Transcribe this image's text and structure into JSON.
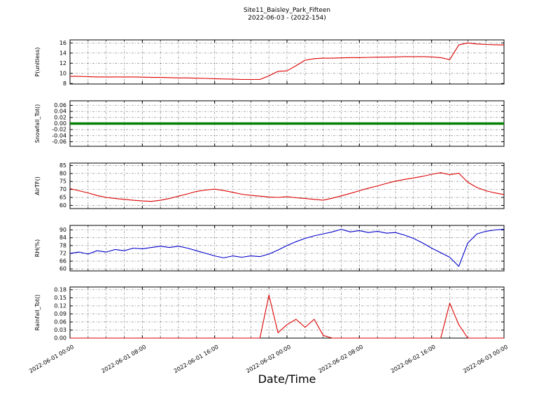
{
  "figure": {
    "title": "Site11_Baisley_Park_Fifteen",
    "subtitle": "2022-06-03 - (2022-154)",
    "xlabel": "Date/Time"
  },
  "chart_data": {
    "type": "line",
    "title": "Site11_Baisley_Park_Fifteen",
    "subtitle": "2022-06-03 - (2022-154)",
    "xlabel": "Date/Time",
    "x_unit": "hours since 2022-06-01 00:00",
    "x_range_hours": [
      0,
      48
    ],
    "xticks": [
      0,
      8,
      16,
      24,
      32,
      40,
      48
    ],
    "xtick_labels": [
      "2022-06-01 00:00",
      "2022-06-01 08:00",
      "2022-06-01 16:00",
      "2022-06-02 00:00",
      "2022-06-02 08:00",
      "2022-06-02 16:00",
      "2022-06-03 00:00"
    ],
    "minor_x_step": 2,
    "grid": true,
    "legend": "none",
    "subplots": [
      {
        "name": "subplot-p-unitless",
        "ylabel": "P(unitless)",
        "color": "#dd0000",
        "line_width": 1.1,
        "ylim": [
          7.9,
          16.6
        ],
        "yticks": [
          8,
          10,
          12,
          14,
          16
        ],
        "ytick_labels": [
          "8",
          "10",
          "12",
          "14",
          "16"
        ],
        "values": [
          9.4,
          9.4,
          9.35,
          9.3,
          9.3,
          9.3,
          9.3,
          9.3,
          9.25,
          9.2,
          9.2,
          9.15,
          9.1,
          9.1,
          9.05,
          9.0,
          8.95,
          8.9,
          8.85,
          8.8,
          8.8,
          8.8,
          9.5,
          10.4,
          10.5,
          11.5,
          12.6,
          12.9,
          13.0,
          13.0,
          13.05,
          13.1,
          13.1,
          13.15,
          13.2,
          13.2,
          13.25,
          13.3,
          13.3,
          13.3,
          13.25,
          13.1,
          12.7,
          15.6,
          16.0,
          15.8,
          15.7,
          15.65,
          15.6
        ]
      },
      {
        "name": "subplot-snowfall-tot",
        "ylabel": "Snowfall_Tot()",
        "color": "#008000",
        "line_width": 3.5,
        "ylim": [
          -0.075,
          0.075
        ],
        "yticks": [
          -0.06,
          -0.04,
          -0.02,
          0.0,
          0.02,
          0.04,
          0.06
        ],
        "ytick_labels": [
          "-0.06",
          "-0.04",
          "-0.02",
          "0.00",
          "0.02",
          "0.04",
          "0.06"
        ],
        "values": [
          0,
          0
        ]
      },
      {
        "name": "subplot-airtf",
        "ylabel": "AirTF()",
        "color": "#dd0000",
        "line_width": 1.1,
        "ylim": [
          58,
          86.5
        ],
        "yticks": [
          60,
          65,
          70,
          75,
          80,
          85
        ],
        "ytick_labels": [
          "60",
          "65",
          "70",
          "75",
          "80",
          "85"
        ],
        "values": [
          70.5,
          69.2,
          67.8,
          66.2,
          65.0,
          64.3,
          63.8,
          63.2,
          62.8,
          62.5,
          63.2,
          64.3,
          65.8,
          67.2,
          68.8,
          69.6,
          70.2,
          69.3,
          68.2,
          67.0,
          66.3,
          65.8,
          65.3,
          65.0,
          65.5,
          64.8,
          64.3,
          63.8,
          63.3,
          64.5,
          66.0,
          67.5,
          69.2,
          70.8,
          72.2,
          73.8,
          75.2,
          76.3,
          77.2,
          78.2,
          79.5,
          80.5,
          79.2,
          80.2,
          74.5,
          71.2,
          69.2,
          67.8,
          66.8
        ]
      },
      {
        "name": "subplot-rh",
        "ylabel": "RH(%)",
        "color": "#0000cc",
        "line_width": 1.1,
        "ylim": [
          58.5,
          93.5
        ],
        "yticks": [
          60,
          66,
          72,
          78,
          84,
          90
        ],
        "ytick_labels": [
          "60",
          "66",
          "72",
          "78",
          "84",
          "90"
        ],
        "values": [
          72.0,
          73.0,
          71.5,
          74.0,
          73.0,
          75.0,
          74.0,
          76.0,
          75.5,
          76.5,
          77.5,
          76.5,
          77.5,
          76.0,
          74.0,
          72.0,
          70.0,
          68.5,
          70.0,
          69.0,
          70.0,
          69.5,
          71.5,
          74.5,
          78.0,
          81.0,
          83.5,
          85.5,
          87.0,
          88.5,
          90.5,
          88.5,
          89.5,
          88.0,
          89.0,
          87.5,
          88.0,
          86.0,
          83.5,
          80.0,
          76.0,
          72.5,
          69.0,
          62.0,
          80.0,
          87.0,
          89.0,
          90.0,
          90.5
        ]
      },
      {
        "name": "subplot-rainfall-tot",
        "ylabel": "Rainfall_Tot()",
        "color": "#dd0000",
        "line_width": 1.1,
        "ylim": [
          0,
          0.19
        ],
        "yticks": [
          0.0,
          0.03,
          0.06,
          0.09,
          0.12,
          0.15,
          0.18
        ],
        "ytick_labels": [
          "0.00",
          "0.03",
          "0.06",
          "0.09",
          "0.12",
          "0.15",
          "0.18"
        ],
        "values": [
          0,
          0,
          0,
          0,
          0,
          0,
          0,
          0,
          0,
          0,
          0,
          0,
          0,
          0,
          0,
          0,
          0,
          0,
          0,
          0,
          0,
          0,
          0.16,
          0.02,
          0.05,
          0.07,
          0.04,
          0.07,
          0.01,
          0,
          0,
          0,
          0,
          0,
          0,
          0,
          0,
          0,
          0,
          0,
          0,
          0,
          0.13,
          0.05,
          0,
          0,
          0,
          0,
          0
        ]
      }
    ]
  }
}
